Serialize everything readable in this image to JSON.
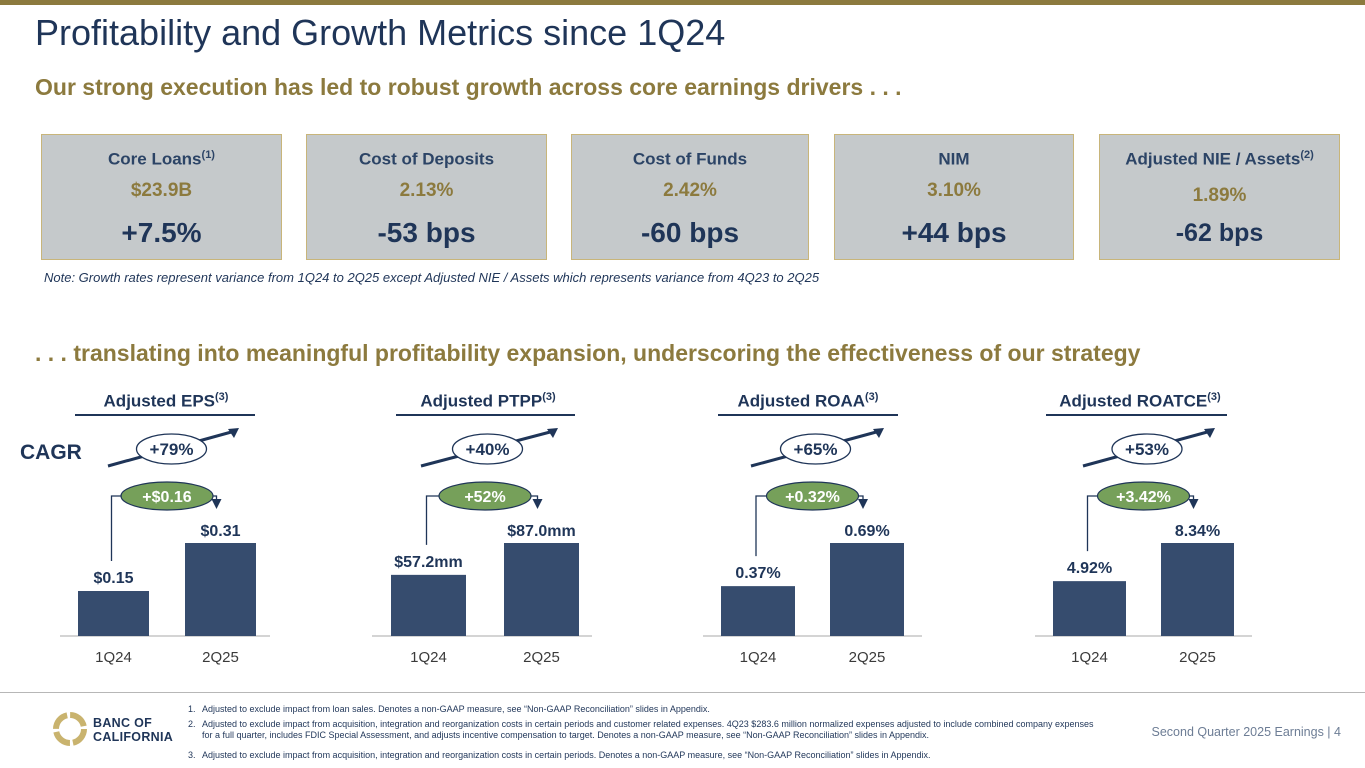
{
  "header": {
    "title": "Profitability and Growth Metrics since 1Q24",
    "subtitle": "Our strong execution has led to robust growth across core earnings drivers . . ."
  },
  "cards": [
    {
      "label": "Core Loans",
      "sup": "(1)",
      "value": "$23.9B",
      "change": "+7.5%"
    },
    {
      "label": "Cost of Deposits",
      "sup": "",
      "value": "2.13%",
      "change": "-53 bps"
    },
    {
      "label": "Cost of Funds",
      "sup": "",
      "value": "2.42%",
      "change": "-60 bps"
    },
    {
      "label": "NIM",
      "sup": "",
      "value": "3.10%",
      "change": "+44 bps"
    },
    {
      "label": "Adjusted NIE / Assets",
      "sup": "(2)",
      "value": "1.89%",
      "change": "-62 bps"
    }
  ],
  "note": "Note: Growth rates represent variance from 1Q24 to 2Q25 except Adjusted NIE / Assets which represents variance from 4Q23 to 2Q25",
  "subtitle2": ". . . translating into meaningful profitability expansion, underscoring the effectiveness of our strategy",
  "cagr_label": "CAGR",
  "chart_data": [
    {
      "type": "bar",
      "title": "Adjusted EPS",
      "sup": "(3)",
      "categories": [
        "1Q24",
        "2Q25"
      ],
      "values": [
        0.15,
        0.31
      ],
      "labels": [
        "$0.15",
        "$0.31"
      ],
      "change": "+$0.16",
      "cagr": "+79%"
    },
    {
      "type": "bar",
      "title": "Adjusted PTPP",
      "sup": "(3)",
      "categories": [
        "1Q24",
        "2Q25"
      ],
      "values": [
        57.2,
        87.0
      ],
      "labels": [
        "$57.2mm",
        "$87.0mm"
      ],
      "change": "+52%",
      "cagr": "+40%"
    },
    {
      "type": "bar",
      "title": "Adjusted ROAA",
      "sup": "(3)",
      "categories": [
        "1Q24",
        "2Q25"
      ],
      "values": [
        0.37,
        0.69
      ],
      "labels": [
        "0.37%",
        "0.69%"
      ],
      "change": "+0.32%",
      "cagr": "+65%"
    },
    {
      "type": "bar",
      "title": "Adjusted ROATCE",
      "sup": "(3)",
      "categories": [
        "1Q24",
        "2Q25"
      ],
      "values": [
        4.92,
        8.34
      ],
      "labels": [
        "4.92%",
        "8.34%"
      ],
      "change": "+3.42%",
      "cagr": "+53%"
    }
  ],
  "footnotes": [
    {
      "num": "1.",
      "text": "Adjusted to exclude impact from loan sales. Denotes a non-GAAP measure, see “Non-GAAP Reconciliation” slides in Appendix."
    },
    {
      "num": "2.",
      "text": "Adjusted to exclude impact from acquisition, integration and reorganization costs in certain periods and customer related expenses. 4Q23 $283.6 million normalized expenses adjusted to include combined company expenses for a full quarter, includes FDIC Special Assessment, and adjusts incentive compensation to target. Denotes a non-GAAP measure, see “Non-GAAP Reconciliation” slides in Appendix."
    },
    {
      "num": "3.",
      "text": "Adjusted to exclude impact from acquisition, integration and reorganization costs in certain periods. Denotes a non-GAAP measure, see “Non-GAAP Reconciliation” slides in Appendix."
    }
  ],
  "footer": {
    "logo_line1": "BANC OF",
    "logo_line2": "CALIFORNIA",
    "page_label": "Second Quarter 2025 Earnings |",
    "page_number": "4"
  },
  "colors": {
    "navy": "#1f3558",
    "bar": "#364c6e",
    "gold": "#8c7a3e",
    "green": "#76a05a",
    "card": "#c5c9cb"
  }
}
